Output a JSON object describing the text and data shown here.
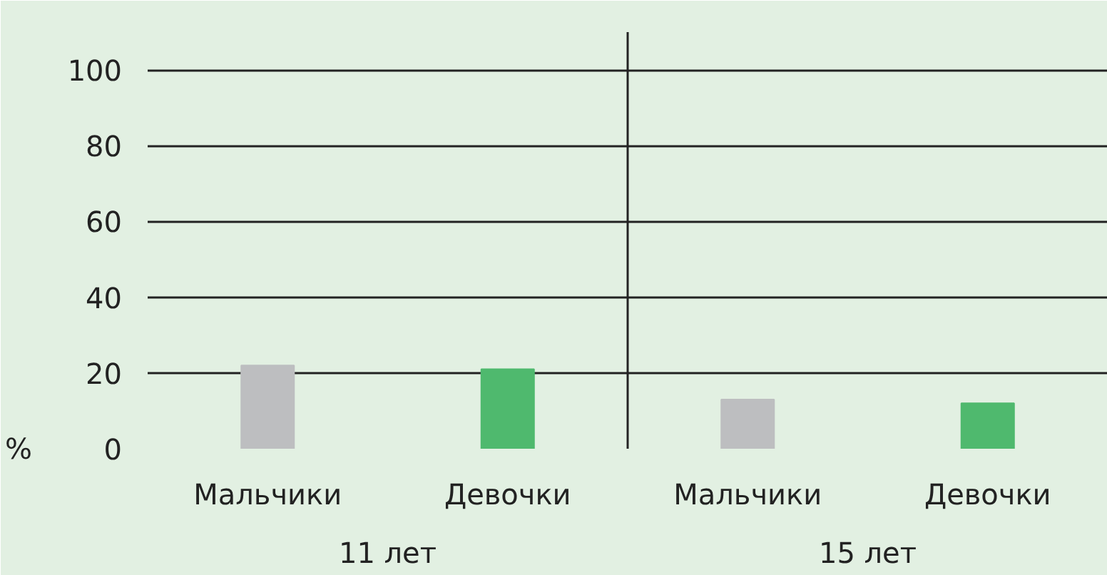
{
  "chart_data": {
    "type": "bar",
    "ylabel": "%",
    "categories": [
      "Мальчики",
      "Девочки",
      "Мальчики",
      "Девочки"
    ],
    "values": [
      22,
      21,
      13,
      12
    ],
    "colors": [
      "#bdbec0",
      "#4fb96e",
      "#bdbec0",
      "#4fb96e"
    ],
    "ylim": [
      0,
      110
    ],
    "yticks": [
      0,
      20,
      40,
      60,
      80,
      100
    ],
    "grid": "y",
    "annotations": [
      "11 лет",
      "15 лет"
    ]
  }
}
